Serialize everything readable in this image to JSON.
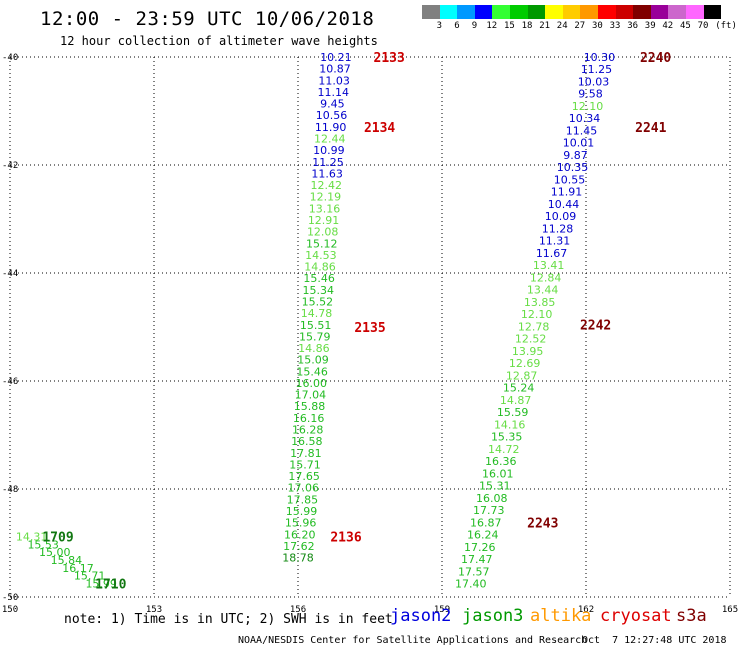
{
  "header": {
    "title": "12:00 - 23:59 UTC 10/06/2018",
    "subtitle": "12 hour collection of altimeter wave heights"
  },
  "legend": {
    "unit": "(ft)",
    "swatches": [
      {
        "color": "#808080",
        "label": "3"
      },
      {
        "color": "#00ffff",
        "label": "6"
      },
      {
        "color": "#0099ff",
        "label": "9"
      },
      {
        "color": "#0000ff",
        "label": "12"
      },
      {
        "color": "#33ff33",
        "label": "15"
      },
      {
        "color": "#00cc00",
        "label": "18"
      },
      {
        "color": "#009900",
        "label": "21"
      },
      {
        "color": "#ffff00",
        "label": "24"
      },
      {
        "color": "#ffcc00",
        "label": "27"
      },
      {
        "color": "#ff9900",
        "label": "30"
      },
      {
        "color": "#ff0000",
        "label": "33"
      },
      {
        "color": "#cc0000",
        "label": "36"
      },
      {
        "color": "#800000",
        "label": "39"
      },
      {
        "color": "#990099",
        "label": "42"
      },
      {
        "color": "#cc66cc",
        "label": "45"
      },
      {
        "color": "#ff66ff",
        "label": "70"
      },
      {
        "color": "#000000",
        "label": ""
      }
    ]
  },
  "chart_data": {
    "type": "scatter",
    "title": "12:00 - 23:59 UTC 10/06/2018",
    "subtitle": "12 hour collection of altimeter wave heights",
    "xlim": [
      150,
      165
    ],
    "ylim": [
      -50,
      -40
    ],
    "x_ticks": [
      "150",
      "153",
      "156",
      "159",
      "162",
      "165"
    ],
    "y_ticks": [
      "-40",
      "-42",
      "-44",
      "-46",
      "-48",
      "-50"
    ],
    "grid": true,
    "color_scale": [
      {
        "max": 12,
        "color": "#0000cc"
      },
      {
        "max": 15,
        "color": "#66dd44"
      },
      {
        "max": 18,
        "color": "#22bb22"
      },
      {
        "max": 21,
        "color": "#118811"
      }
    ],
    "tracks": [
      {
        "x_start": 156.79,
        "x_end": 156.0,
        "y_start": -40.0,
        "y_end": -49.27,
        "values": [
          "10.21",
          "10.87",
          "11.03",
          "11.14",
          "9.45",
          "10.56",
          "11.90",
          "12.44",
          "10.99",
          "11.25",
          "11.63",
          "12.42",
          "12.19",
          "13.16",
          "12.91",
          "12.08",
          "15.12",
          "14.53",
          "14.86",
          "15.46",
          "15.34",
          "15.52",
          "14.78",
          "15.51",
          "15.79",
          "14.86",
          "15.09",
          "15.46",
          "16.00",
          "17.04",
          "15.88",
          "16.16",
          "16.28",
          "16.58",
          "17.81",
          "15.71",
          "17.65",
          "17.06",
          "17.85",
          "15.99",
          "15.96",
          "16.20",
          "17.62",
          "18.78"
        ]
      },
      {
        "x_start": 162.28,
        "x_end": 159.6,
        "y_start": -40.0,
        "y_end": -49.75,
        "values": [
          "10.30",
          "11.25",
          "10.03",
          "9.58",
          "12.10",
          "10.34",
          "11.45",
          "10.01",
          "9.87",
          "10.35",
          "10.55",
          "11.91",
          "10.44",
          "10.09",
          "11.28",
          "11.31",
          "11.67",
          "13.41",
          "12.84",
          "13.44",
          "13.85",
          "12.10",
          "12.78",
          "12.52",
          "13.95",
          "12.69",
          "12.87",
          "15.24",
          "14.87",
          "15.59",
          "14.16",
          "15.35",
          "14.72",
          "16.36",
          "16.01",
          "15.31",
          "16.08",
          "17.73",
          "16.87",
          "16.24",
          "17.26",
          "17.47",
          "17.57",
          "17.40"
        ]
      },
      {
        "x_start": 150.45,
        "x_end": 151.9,
        "y_start": -48.88,
        "y_end": -49.75,
        "values": [
          "14.31",
          "15.53",
          "15.00",
          "15.84",
          "16.17",
          "15.71",
          "15.99"
        ]
      }
    ],
    "time_labels": [
      {
        "text": "2133",
        "x": 157.9,
        "y": -40.0,
        "color": "#cc0000"
      },
      {
        "text": "2134",
        "x": 157.7,
        "y": -41.3,
        "color": "#cc0000"
      },
      {
        "text": "2135",
        "x": 157.5,
        "y": -45.0,
        "color": "#cc0000"
      },
      {
        "text": "2136",
        "x": 157.0,
        "y": -48.88,
        "color": "#cc0000"
      },
      {
        "text": "2240",
        "x": 163.45,
        "y": -40.0,
        "color": "#800000"
      },
      {
        "text": "2241",
        "x": 163.35,
        "y": -41.3,
        "color": "#800000"
      },
      {
        "text": "2242",
        "x": 162.2,
        "y": -44.95,
        "color": "#800000"
      },
      {
        "text": "2243",
        "x": 161.1,
        "y": -48.62,
        "color": "#800000"
      },
      {
        "text": "1709",
        "x": 151.0,
        "y": -48.88,
        "color": "#117711"
      },
      {
        "text": "1710",
        "x": 152.1,
        "y": -49.75,
        "color": "#117711"
      }
    ]
  },
  "footer": {
    "note": "note: 1) Time is in UTC; 2) SWH is in feet",
    "satellites": [
      {
        "name": "jason2",
        "color": "#0000dd"
      },
      {
        "name": "jason3",
        "color": "#009900"
      },
      {
        "name": "altika",
        "color": "#ff9900"
      },
      {
        "name": "cryosat",
        "color": "#dd0000"
      },
      {
        "name": "s3a",
        "color": "#800000"
      }
    ],
    "credit": "NOAA/NESDIS Center for Satellite Applications and Research",
    "timestamp": "Oct  7 12:27:48 UTC 2018"
  }
}
